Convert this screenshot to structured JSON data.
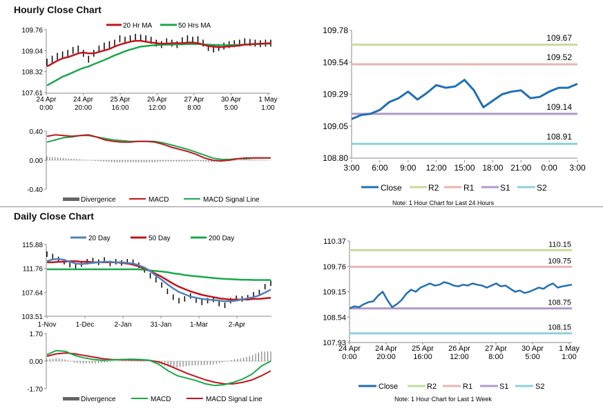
{
  "sections": {
    "hourly_title": "Hourly Close Chart",
    "daily_title": "Daily Close Chart"
  },
  "colors": {
    "ma_red": "#c0151b",
    "ma_green": "#19a84a",
    "close_blue": "#1f6fb2",
    "r2": "#c6dc9a",
    "r1": "#e8b4b0",
    "s1": "#b09ac8",
    "s2": "#8fd0dc",
    "blue_ma": "#4f81bd",
    "hist": "#666666",
    "price": "#000000"
  },
  "chart_data": [
    {
      "id": "hourly_price",
      "type": "line",
      "title": "Hourly Close Chart",
      "legend": [
        "20 Hr MA",
        "50 Hrs MA"
      ],
      "yticks": [
        "109.76",
        "109.04",
        "108.32",
        "107.61"
      ],
      "ylim": [
        107.61,
        109.76
      ],
      "xticks": [
        [
          "24 Apr",
          "0:00"
        ],
        [
          "24 Apr",
          "20:00"
        ],
        [
          "25 Apr",
          "16:00"
        ],
        [
          "26 Apr",
          "12:00"
        ],
        [
          "27 Apr",
          "8:00"
        ],
        [
          "30 Apr",
          "5:00"
        ],
        [
          "1 May",
          "1:00"
        ]
      ],
      "series": [
        {
          "name": "price",
          "values": [
            108.65,
            108.75,
            108.85,
            108.9,
            108.95,
            109.05,
            109.1,
            108.95,
            108.75,
            108.95,
            109.1,
            109.2,
            109.25,
            109.3,
            109.45,
            109.4,
            109.45,
            109.5,
            109.48,
            109.45,
            109.4,
            109.3,
            109.25,
            109.35,
            109.3,
            109.25,
            109.38,
            109.45,
            109.4,
            109.42,
            109.3,
            109.15,
            109.1,
            109.15,
            109.2,
            109.25,
            109.28,
            109.3,
            109.35,
            109.32,
            109.3,
            109.28,
            109.3,
            109.3
          ]
        },
        {
          "name": "20 Hr MA",
          "values": [
            108.5,
            108.6,
            108.7,
            108.78,
            108.82,
            108.88,
            108.95,
            108.98,
            108.95,
            108.95,
            109.0,
            109.05,
            109.1,
            109.18,
            109.25,
            109.3,
            109.35,
            109.38,
            109.38,
            109.35,
            109.32,
            109.3,
            109.28,
            109.28,
            109.3,
            109.3,
            109.3,
            109.32,
            109.32,
            109.3,
            109.25,
            109.2,
            109.18,
            109.16,
            109.17,
            109.19,
            109.2,
            109.22,
            109.25,
            109.26,
            109.27,
            109.28,
            109.29,
            109.3
          ]
        },
        {
          "name": "50 Hrs MA",
          "values": [
            107.85,
            107.95,
            108.05,
            108.15,
            108.22,
            108.3,
            108.38,
            108.45,
            108.5,
            108.58,
            108.65,
            108.72,
            108.8,
            108.88,
            108.95,
            109.02,
            109.08,
            109.13,
            109.18,
            109.2,
            109.22,
            109.23,
            109.24,
            109.25,
            109.25,
            109.26,
            109.26,
            109.27,
            109.27,
            109.27,
            109.26,
            109.25,
            109.24,
            109.23,
            109.23,
            109.23,
            109.24,
            109.24,
            109.25,
            109.26,
            109.27,
            109.27,
            109.28,
            109.28
          ]
        }
      ]
    },
    {
      "id": "hourly_macd",
      "type": "line",
      "yticks": [
        "0.40",
        "0.00",
        "-0.40"
      ],
      "ylim": [
        -0.4,
        0.4
      ],
      "legend": [
        "Divergence",
        "MACD",
        "MACD Signal Line"
      ],
      "series": [
        {
          "name": "MACD",
          "values": [
            0.33,
            0.35,
            0.34,
            0.33,
            0.34,
            0.35,
            0.32,
            0.28,
            0.26,
            0.25,
            0.25,
            0.26,
            0.26,
            0.25,
            0.22,
            0.18,
            0.15,
            0.12,
            0.08,
            0.03,
            0.0,
            -0.01,
            0.0,
            0.02,
            0.03,
            0.03,
            0.03,
            0.03
          ]
        },
        {
          "name": "MACD Signal Line",
          "values": [
            0.25,
            0.28,
            0.31,
            0.32,
            0.34,
            0.34,
            0.32,
            0.3,
            0.28,
            0.27,
            0.26,
            0.26,
            0.26,
            0.26,
            0.24,
            0.21,
            0.18,
            0.15,
            0.11,
            0.07,
            0.03,
            0.01,
            0.01,
            0.02,
            0.02,
            0.03,
            0.03,
            0.03
          ]
        },
        {
          "name": "Divergence",
          "values": [
            0.05,
            0.04,
            0.03,
            0.02,
            0.01,
            0.0,
            -0.01,
            -0.02,
            -0.03,
            -0.03,
            -0.03,
            -0.03,
            -0.03,
            -0.03,
            -0.02,
            -0.02,
            -0.02,
            -0.02,
            -0.01,
            -0.02,
            -0.03,
            -0.02,
            -0.01,
            0.0,
            0.01,
            0.01,
            0.0,
            0.0
          ]
        }
      ]
    },
    {
      "id": "hourly_close",
      "type": "line",
      "yticks": [
        "109.78",
        "109.54",
        "109.29",
        "109.05",
        "108.80"
      ],
      "ylim": [
        108.8,
        109.78
      ],
      "xticks": [
        "3:00",
        "6:00",
        "9:00",
        "12:00",
        "15:00",
        "18:00",
        "21:00",
        "0:00",
        "3:00"
      ],
      "levels": [
        {
          "name": "R2",
          "value": "109.67",
          "v": 109.67
        },
        {
          "name": "R1",
          "value": "109.52",
          "v": 109.52
        },
        {
          "name": "S1",
          "value": "109.14",
          "v": 109.14
        },
        {
          "name": "S2",
          "value": "108.91",
          "v": 108.91
        }
      ],
      "close": [
        109.1,
        109.13,
        109.14,
        109.17,
        109.23,
        109.26,
        109.31,
        109.25,
        109.3,
        109.36,
        109.34,
        109.35,
        109.4,
        109.32,
        109.19,
        109.24,
        109.29,
        109.31,
        109.32,
        109.26,
        109.27,
        109.31,
        109.34,
        109.34,
        109.37
      ],
      "legend": [
        "Close",
        "R2",
        "R1",
        "S1",
        "S2"
      ],
      "note": "Note: 1 Hour Chart for Last 24 Hours"
    },
    {
      "id": "daily_price",
      "type": "line",
      "title": "Daily Close Chart",
      "legend": [
        "20 Day",
        "50 Day",
        "200 Day"
      ],
      "yticks": [
        "115.88",
        "111.76",
        "107.64",
        "103.51"
      ],
      "ylim": [
        103.51,
        115.88
      ],
      "xticks": [
        "1-Nov",
        "1-Dec",
        "2-Jan",
        "31-Jan",
        "1-Mar",
        "2-Apr"
      ],
      "series": [
        {
          "name": "price",
          "values": [
            114.2,
            113.8,
            113.3,
            112.9,
            112.4,
            112.1,
            112.5,
            112.9,
            113.1,
            112.8,
            113.2,
            112.6,
            112.9,
            112.7,
            112.9,
            112.8,
            112.3,
            111.5,
            110.5,
            109.8,
            108.9,
            107.8,
            106.8,
            106.2,
            106.5,
            107.0,
            106.3,
            105.9,
            106.2,
            106.4,
            105.7,
            105.4,
            106.2,
            106.6,
            106.5,
            106.7,
            107.2,
            107.6,
            108.6,
            109.2
          ]
        },
        {
          "name": "20 Day",
          "values": [
            113.0,
            113.3,
            113.4,
            113.2,
            112.9,
            112.6,
            112.5,
            112.6,
            112.7,
            112.8,
            112.9,
            112.9,
            112.8,
            112.8,
            112.7,
            112.6,
            112.3,
            111.9,
            111.3,
            110.5,
            109.8,
            109.0,
            108.3,
            107.7,
            107.3,
            106.9,
            106.7,
            106.5,
            106.4,
            106.3,
            106.2,
            106.1,
            106.1,
            106.2,
            106.4,
            106.6,
            106.8,
            107.1,
            107.6,
            108.1
          ]
        },
        {
          "name": "50 Day",
          "values": [
            112.8,
            112.8,
            112.9,
            112.9,
            113.0,
            113.0,
            112.9,
            112.9,
            112.8,
            112.8,
            112.8,
            112.8,
            112.8,
            112.7,
            112.6,
            112.4,
            112.1,
            111.7,
            111.3,
            110.8,
            110.3,
            109.7,
            109.1,
            108.6,
            108.2,
            107.8,
            107.5,
            107.2,
            107.0,
            106.8,
            106.6,
            106.5,
            106.4,
            106.4,
            106.4,
            106.4,
            106.5,
            106.5,
            106.6,
            106.7
          ]
        },
        {
          "name": "200 Day",
          "values": [
            111.6,
            111.6,
            111.6,
            111.6,
            111.6,
            111.6,
            111.6,
            111.6,
            111.6,
            111.6,
            111.6,
            111.6,
            111.6,
            111.6,
            111.6,
            111.6,
            111.6,
            111.5,
            111.4,
            111.3,
            111.2,
            111.1,
            110.9,
            110.8,
            110.6,
            110.5,
            110.4,
            110.3,
            110.2,
            110.1,
            110.0,
            109.95,
            109.9,
            109.85,
            109.8,
            109.8,
            109.75,
            109.75,
            109.75,
            109.75
          ]
        }
      ]
    },
    {
      "id": "daily_macd",
      "type": "line",
      "yticks": [
        "1.70",
        "0.00",
        "-1.70"
      ],
      "ylim": [
        -1.7,
        1.7
      ],
      "legend": [
        "Divergence",
        "MACD",
        "MACD Signal Line"
      ],
      "series": [
        {
          "name": "MACD",
          "values": [
            0.4,
            0.65,
            0.6,
            0.35,
            0.2,
            0.1,
            0.05,
            0.08,
            0.1,
            0.12,
            0.1,
            0.05,
            -0.2,
            -0.6,
            -0.9,
            -1.05,
            -1.2,
            -1.4,
            -1.5,
            -1.45,
            -1.3,
            -1.1,
            -0.8,
            -0.3,
            0.0
          ]
        },
        {
          "name": "MACD Signal Line",
          "values": [
            0.3,
            0.45,
            0.5,
            0.45,
            0.35,
            0.25,
            0.15,
            0.1,
            0.08,
            0.08,
            0.07,
            0.05,
            -0.05,
            -0.25,
            -0.5,
            -0.75,
            -0.95,
            -1.15,
            -1.3,
            -1.4,
            -1.4,
            -1.3,
            -1.15,
            -0.9,
            -0.6
          ]
        },
        {
          "name": "Divergence",
          "values": [
            0.1,
            0.2,
            0.1,
            -0.1,
            -0.15,
            -0.15,
            -0.1,
            -0.02,
            0.02,
            0.04,
            0.03,
            0.0,
            -0.15,
            -0.35,
            -0.4,
            -0.3,
            -0.25,
            -0.25,
            -0.2,
            -0.05,
            0.1,
            0.2,
            0.35,
            0.6,
            0.6
          ]
        }
      ]
    },
    {
      "id": "weekly_close",
      "type": "line",
      "yticks": [
        "110.37",
        "109.76",
        "109.15",
        "108.54",
        "107.93"
      ],
      "ylim": [
        107.93,
        110.37
      ],
      "xticks": [
        [
          "24 Apr",
          "0:00"
        ],
        [
          "24 Apr",
          "20:00"
        ],
        [
          "25 Apr",
          "16:00"
        ],
        [
          "26 Apr",
          "12:00"
        ],
        [
          "27 Apr",
          "8:00"
        ],
        [
          "30 Apr",
          "5:00"
        ],
        [
          "1 May",
          "1:00"
        ]
      ],
      "levels": [
        {
          "name": "R2",
          "value": "110.15",
          "v": 110.15
        },
        {
          "name": "R1",
          "value": "109.75",
          "v": 109.75
        },
        {
          "name": "S1",
          "value": "108.75",
          "v": 108.75
        },
        {
          "name": "S2",
          "value": "108.15",
          "v": 108.15
        }
      ],
      "close": [
        108.75,
        108.8,
        108.78,
        108.85,
        108.9,
        108.92,
        109.05,
        109.15,
        108.95,
        108.78,
        108.85,
        108.95,
        109.1,
        109.2,
        109.15,
        109.25,
        109.3,
        109.35,
        109.3,
        109.32,
        109.38,
        109.35,
        109.3,
        109.28,
        109.32,
        109.3,
        109.35,
        109.32,
        109.3,
        109.25,
        109.3,
        109.35,
        109.28,
        109.3,
        109.22,
        109.15,
        109.18,
        109.12,
        109.15,
        109.2,
        109.25,
        109.22,
        109.3,
        109.35,
        109.25,
        109.28,
        109.3,
        109.32
      ],
      "legend": [
        "Close",
        "R2",
        "R1",
        "S1",
        "S2"
      ],
      "note": "Note: 1 Hour Chart for Last 1 Week"
    }
  ]
}
